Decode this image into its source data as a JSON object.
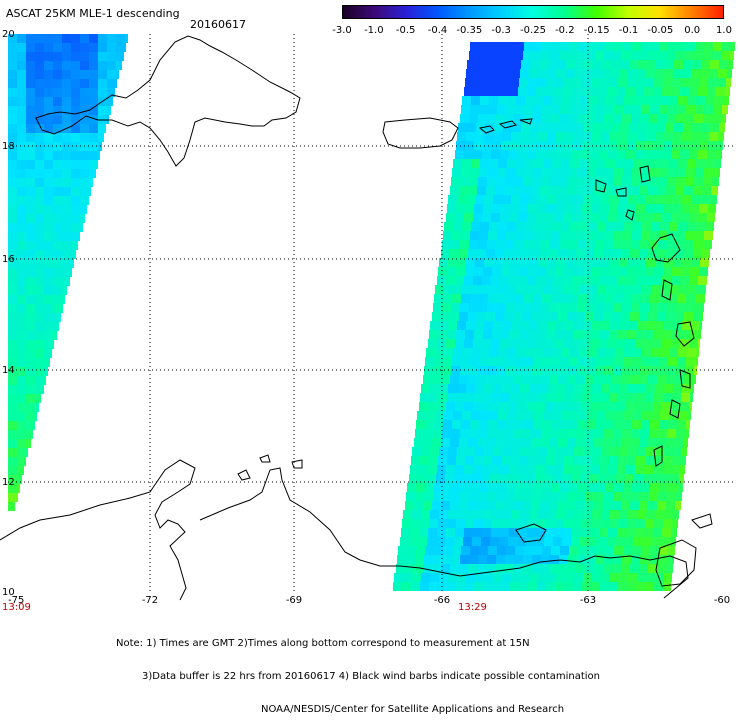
{
  "header": {
    "title": "ASCAT 25KM MLE-1 descending",
    "date": "20160617"
  },
  "colorbar": {
    "labels": [
      "-3.0",
      "-1.0",
      "-0.5",
      "-0.4",
      "-0.35",
      "-0.3",
      "-0.25",
      "-0.2",
      "-0.15",
      "-0.1",
      "-0.05",
      "0.0",
      "1.0"
    ],
    "colors": [
      "#1a0026",
      "#3c0a78",
      "#2a20d8",
      "#0058ff",
      "#0098ff",
      "#00d0ff",
      "#00ffe0",
      "#00ff90",
      "#40ff00",
      "#c0ff00",
      "#ffe000",
      "#ff8000",
      "#ff2000"
    ]
  },
  "map": {
    "lat_labels": [
      "20",
      "18",
      "16",
      "14",
      "12",
      "10"
    ],
    "lon_labels": [
      "-75",
      "-72",
      "-69",
      "-66",
      "-63",
      "-60"
    ],
    "time_labels": [
      "13:09",
      "13:29"
    ],
    "time_color": "#c00000",
    "land_outline_color": "#000000",
    "grid_color": "#000000"
  },
  "notes": {
    "line1": "Note: 1) Times are GMT 2)Times along bottom correspond to measurement at 15N",
    "line2": "3)Data buffer is 22 hrs from 20160617 4) Black wind barbs indicate possible contamination",
    "line3": "NOAA/NESDIS/Center for Satellite Applications and Research"
  }
}
